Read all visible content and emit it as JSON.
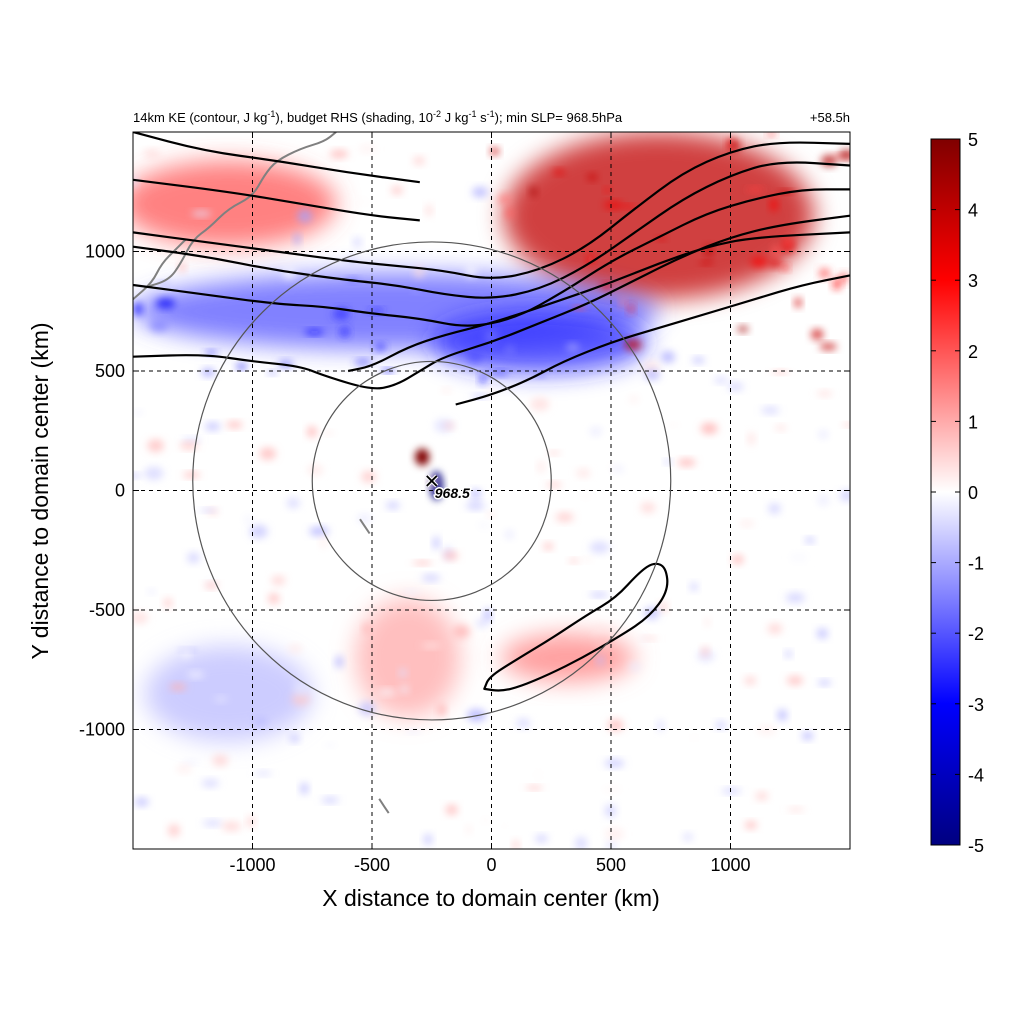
{
  "chart_data": {
    "type": "heatmap",
    "title_left": "14km KE (contour, J kg",
    "title_sup1": "-1",
    "title_mid1": "), budget RHS (shading, 10",
    "title_sup2": "-2",
    "title_mid2": " J kg",
    "title_sup3": "-1",
    "title_mid3": " s",
    "title_sup4": "-1",
    "title_end": "); min SLP= 968.5hPa",
    "title_right": "+58.5h",
    "xlabel": "X distance to domain center (km)",
    "ylabel": "Y distance to domain center (km)",
    "xlim": [
      -1500,
      1500
    ],
    "ylim": [
      -1500,
      1500
    ],
    "xticks": [
      -1000,
      -500,
      0,
      500,
      1000
    ],
    "yticks": [
      -1000,
      -500,
      0,
      500,
      1000
    ],
    "grid": true,
    "colorbar": {
      "min": -5,
      "max": 5,
      "ticks": [
        5,
        4,
        3,
        2,
        1,
        0,
        -1,
        -2,
        -3,
        -4,
        -5
      ],
      "colors": [
        "#000080",
        "#0000ff",
        "#ffffff",
        "#ff0000",
        "#800000"
      ]
    },
    "storm_center": {
      "x": -250,
      "y": 40,
      "label": "968.5"
    },
    "range_circles_radius_km": [
      500,
      1000
    ],
    "shading_regions": [
      {
        "name": "strong-positive-northeast",
        "x": 700,
        "y": 1150,
        "rx": 650,
        "ry": 350,
        "value": 4
      },
      {
        "name": "positive-northwest-band",
        "x": -1100,
        "y": 1200,
        "rx": 450,
        "ry": 180,
        "value": 2
      },
      {
        "name": "negative-jet-band",
        "x": -400,
        "y": 750,
        "rx": 1100,
        "ry": 160,
        "value": -2
      },
      {
        "name": "negative-entrance",
        "x": 200,
        "y": 620,
        "rx": 450,
        "ry": 130,
        "value": -2.5
      },
      {
        "name": "core-positive",
        "x": -290,
        "y": 140,
        "rx": 30,
        "ry": 35,
        "value": 5
      },
      {
        "name": "core-negative",
        "x": -230,
        "y": 20,
        "rx": 25,
        "ry": 60,
        "value": -5
      },
      {
        "name": "weak-positive-south",
        "x": -350,
        "y": -700,
        "rx": 220,
        "ry": 250,
        "value": 1
      },
      {
        "name": "positive-southeast-band",
        "x": 320,
        "y": -700,
        "rx": 280,
        "ry": 100,
        "value": 1.5
      },
      {
        "name": "weak-negative-west",
        "x": -1100,
        "y": -850,
        "rx": 350,
        "ry": 200,
        "value": -0.8
      }
    ],
    "contour_lines": [
      [
        [
          -1500,
          1500
        ],
        [
          -1200,
          1420
        ],
        [
          -900,
          1380
        ],
        [
          -600,
          1330
        ],
        [
          -300,
          1290
        ]
      ],
      [
        [
          -1500,
          1300
        ],
        [
          -1100,
          1250
        ],
        [
          -800,
          1200
        ],
        [
          -500,
          1150
        ],
        [
          -300,
          1130
        ]
      ],
      [
        [
          -1500,
          1080
        ],
        [
          -1200,
          1040
        ],
        [
          -900,
          1000
        ],
        [
          -600,
          960
        ],
        [
          -400,
          940
        ],
        [
          -200,
          920
        ],
        [
          0,
          880
        ],
        [
          200,
          920
        ],
        [
          400,
          1020
        ],
        [
          600,
          1180
        ],
        [
          800,
          1330
        ],
        [
          1000,
          1420
        ],
        [
          1200,
          1460
        ],
        [
          1500,
          1450
        ]
      ],
      [
        [
          -1500,
          1020
        ],
        [
          -1200,
          980
        ],
        [
          -900,
          920
        ],
        [
          -600,
          880
        ],
        [
          -400,
          860
        ],
        [
          -200,
          820
        ],
        [
          0,
          800
        ],
        [
          200,
          840
        ],
        [
          400,
          940
        ],
        [
          600,
          1080
        ],
        [
          800,
          1220
        ],
        [
          1000,
          1320
        ],
        [
          1200,
          1380
        ],
        [
          1500,
          1360
        ]
      ],
      [
        [
          -1500,
          860
        ],
        [
          -1200,
          820
        ],
        [
          -900,
          780
        ],
        [
          -700,
          770
        ],
        [
          -500,
          740
        ],
        [
          -300,
          720
        ],
        [
          -100,
          680
        ],
        [
          100,
          720
        ],
        [
          300,
          830
        ],
        [
          500,
          960
        ],
        [
          700,
          1060
        ],
        [
          900,
          1160
        ],
        [
          1100,
          1220
        ],
        [
          1300,
          1260
        ],
        [
          1500,
          1260
        ]
      ],
      [
        [
          -1500,
          560
        ],
        [
          -1200,
          570
        ],
        [
          -1000,
          540
        ],
        [
          -800,
          520
        ],
        [
          -700,
          480
        ],
        [
          -500,
          420
        ],
        [
          -400,
          440
        ],
        [
          -300,
          500
        ],
        [
          -200,
          560
        ],
        [
          0,
          620
        ],
        [
          200,
          700
        ],
        [
          400,
          780
        ],
        [
          600,
          880
        ],
        [
          800,
          980
        ],
        [
          1000,
          1060
        ],
        [
          1200,
          1110
        ],
        [
          1500,
          1150
        ]
      ],
      [
        [
          -600,
          500
        ],
        [
          -500,
          520
        ],
        [
          -350,
          600
        ],
        [
          -200,
          650
        ],
        [
          0,
          700
        ],
        [
          300,
          800
        ],
        [
          500,
          870
        ],
        [
          700,
          950
        ],
        [
          900,
          1020
        ],
        [
          1100,
          1060
        ],
        [
          1500,
          1080
        ]
      ],
      [
        [
          -150,
          360
        ],
        [
          0,
          400
        ],
        [
          150,
          460
        ],
        [
          300,
          540
        ],
        [
          500,
          620
        ],
        [
          700,
          680
        ],
        [
          900,
          740
        ],
        [
          1100,
          800
        ],
        [
          1300,
          860
        ],
        [
          1500,
          900
        ]
      ]
    ],
    "closed_contours": [
      [
        [
          -30,
          -830
        ],
        [
          -10,
          -780
        ],
        [
          100,
          -710
        ],
        [
          250,
          -620
        ],
        [
          400,
          -520
        ],
        [
          520,
          -450
        ],
        [
          620,
          -340
        ],
        [
          680,
          -300
        ],
        [
          730,
          -320
        ],
        [
          740,
          -420
        ],
        [
          660,
          -530
        ],
        [
          520,
          -620
        ],
        [
          380,
          -700
        ],
        [
          240,
          -770
        ],
        [
          120,
          -820
        ],
        [
          40,
          -840
        ]
      ]
    ],
    "coastlines": [
      [
        [
          -1450,
          850
        ],
        [
          -1350,
          880
        ],
        [
          -1300,
          950
        ],
        [
          -1250,
          1050
        ],
        [
          -1180,
          1100
        ],
        [
          -1100,
          1180
        ],
        [
          -1000,
          1230
        ],
        [
          -950,
          1320
        ],
        [
          -900,
          1380
        ],
        [
          -800,
          1430
        ],
        [
          -700,
          1460
        ],
        [
          -650,
          1500
        ]
      ],
      [
        [
          -1500,
          800
        ],
        [
          -1420,
          870
        ],
        [
          -1380,
          950
        ],
        [
          -1320,
          1010
        ],
        [
          -1280,
          1050
        ]
      ],
      [
        [
          -470,
          -1290
        ],
        [
          -450,
          -1320
        ],
        [
          -430,
          -1350
        ]
      ],
      [
        [
          -550,
          -120
        ],
        [
          -530,
          -150
        ],
        [
          -510,
          -180
        ]
      ]
    ]
  }
}
